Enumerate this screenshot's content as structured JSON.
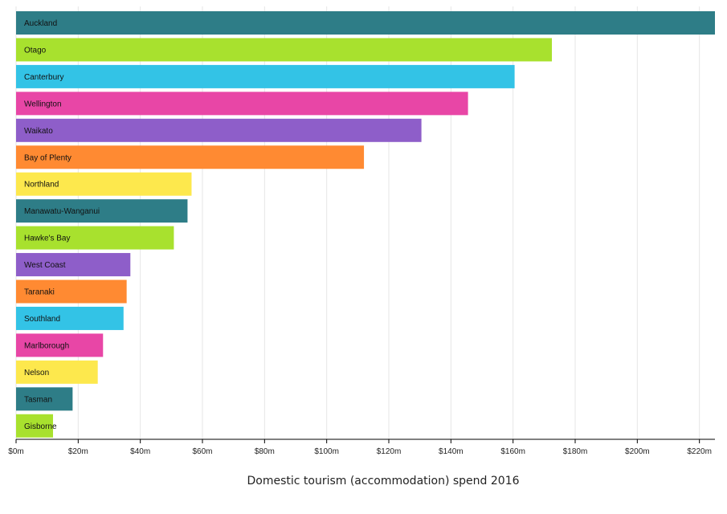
{
  "chart_data": {
    "type": "bar",
    "orientation": "horizontal",
    "xlabel": "Domestic tourism (accommodation) spend 2016",
    "xlim": [
      0,
      225
    ],
    "x_ticks": [
      "$0m",
      "$20m",
      "$40m",
      "$60m",
      "$80m",
      "$100m",
      "$120m",
      "$140m",
      "$160m",
      "$180m",
      "$200m",
      "$220m"
    ],
    "x_tick_values": [
      0,
      20,
      40,
      60,
      80,
      100,
      120,
      140,
      160,
      180,
      200,
      220
    ],
    "grid": true,
    "categories": [
      "Auckland",
      "Otago",
      "Canterbury",
      "Wellington",
      "Waikato",
      "Bay of Plenty",
      "Northland",
      "Manawatu-Wanganui",
      "Hawke's Bay",
      "West Coast",
      "Taranaki",
      "Southland",
      "Marlborough",
      "Nelson",
      "Tasman",
      "Gisborne"
    ],
    "values": [
      225,
      172.5,
      160.5,
      145.5,
      130.5,
      112,
      56.5,
      55.2,
      50.8,
      36.8,
      35.6,
      34.6,
      28,
      26.3,
      18.2,
      11.9
    ],
    "colors": [
      "#2e7d87",
      "#a8e12e",
      "#33c3e6",
      "#e846a6",
      "#8e5ec9",
      "#ff8a32",
      "#fde84d",
      "#2e7d87",
      "#a8e12e",
      "#8e5ec9",
      "#ff8a32",
      "#33c3e6",
      "#e846a6",
      "#fde84d",
      "#2e7d87",
      "#a8e12e"
    ]
  }
}
